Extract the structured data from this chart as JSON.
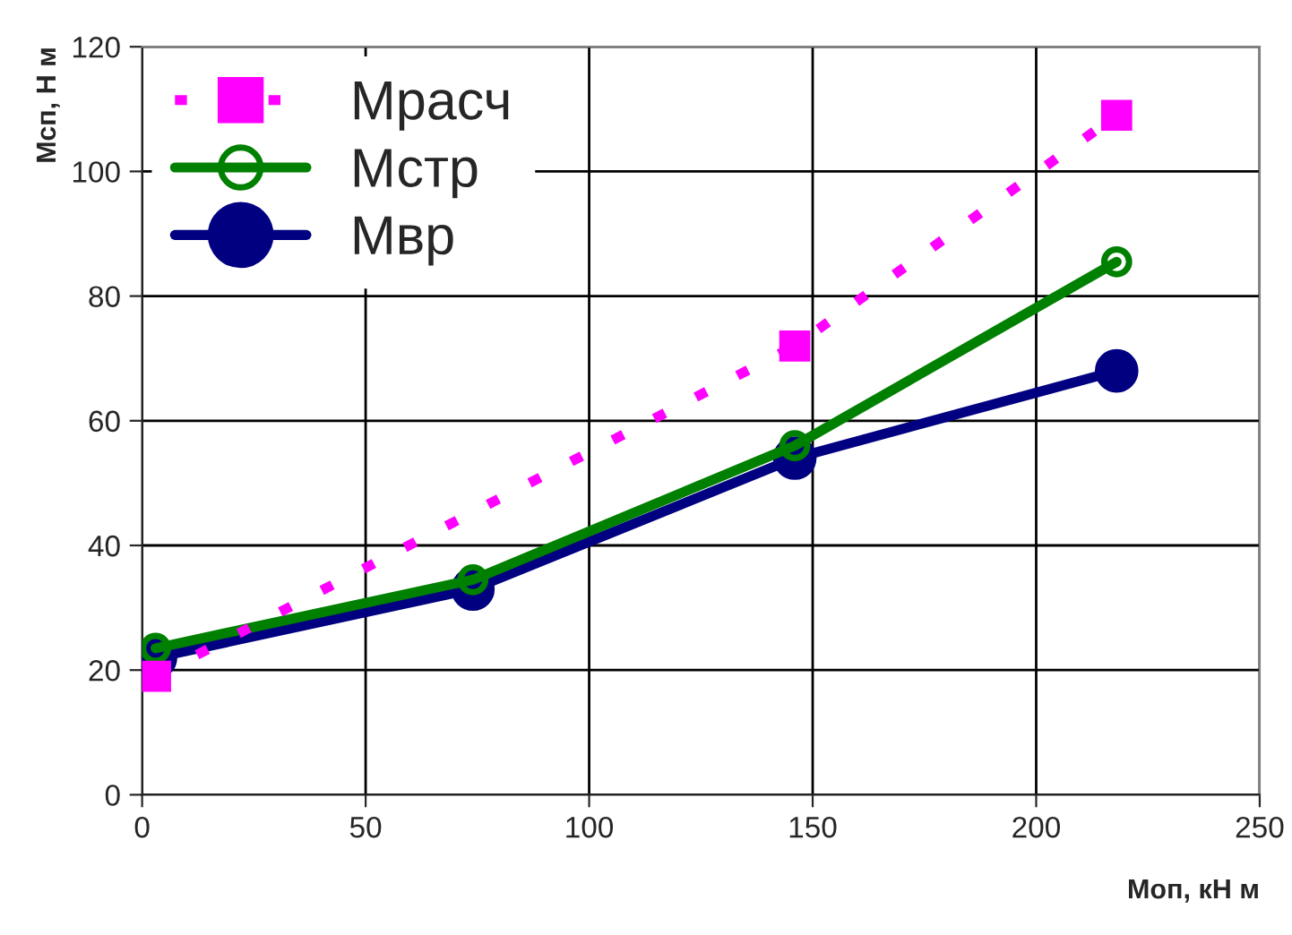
{
  "chart_data": {
    "type": "line",
    "xlabel": "Моп, кН м",
    "ylabel": "Мсп, Н м",
    "xlim": [
      0,
      250
    ],
    "xticks": [
      0,
      50,
      100,
      150,
      200,
      250
    ],
    "ylim": [
      0,
      120
    ],
    "yticks": [
      0,
      20,
      40,
      60,
      80,
      100,
      120
    ],
    "grid": true,
    "legend": "top left",
    "series": [
      {
        "name": "Мрасч",
        "color": "#ff00ff",
        "marker": "square",
        "line_style": "dashed",
        "x": [
          3,
          146,
          218
        ],
        "values": [
          19,
          72,
          109
        ]
      },
      {
        "name": "Мстр",
        "color": "#008000",
        "marker": "circle",
        "line_style": "solid",
        "x": [
          3,
          74,
          146,
          218
        ],
        "values": [
          23.5,
          34.5,
          56,
          85.5
        ]
      },
      {
        "name": "Мвр",
        "color": "#000080",
        "marker": "circle",
        "line_style": "solid",
        "x": [
          3,
          74,
          146,
          218
        ],
        "values": [
          22,
          33,
          54,
          68
        ]
      }
    ]
  }
}
